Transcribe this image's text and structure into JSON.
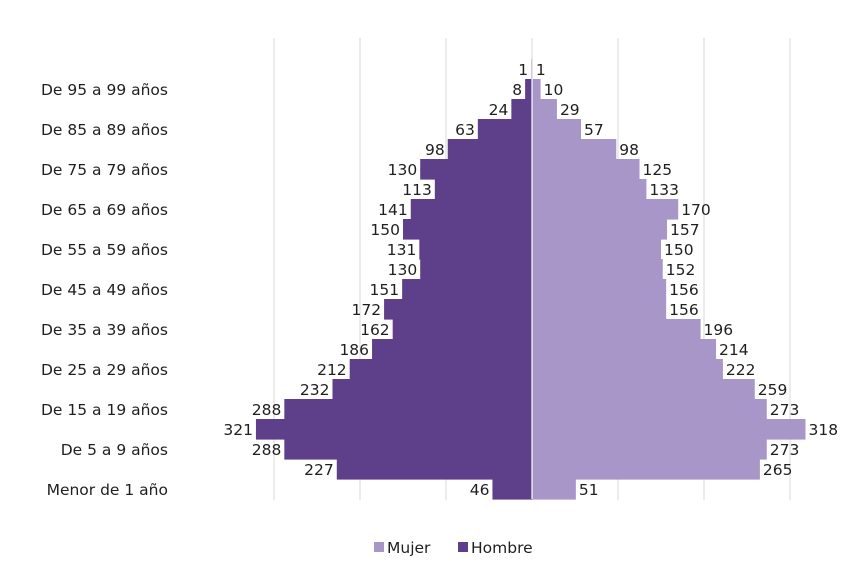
{
  "chart_data": {
    "type": "bar",
    "orientation": "horizontal",
    "layout": "population-pyramid",
    "categories": [
      "Menor de 1 año",
      "",
      "De 5 a 9 años",
      "",
      "De 15 a 19 años",
      "",
      "De 25 a 29 años",
      "",
      "De 35 a 39 años",
      "",
      "De 45 a 49 años",
      "",
      "De 55 a 59 años",
      "",
      "De 65 a 69 años",
      "",
      "De 75 a 79 años",
      "",
      "De 85 a 89 años",
      "",
      "De 95 a 99 años",
      ""
    ],
    "series": [
      {
        "name": "Hombre",
        "color": "#5e3f8a",
        "side": "left",
        "values": [
          46,
          227,
          288,
          321,
          288,
          232,
          212,
          186,
          162,
          172,
          151,
          130,
          131,
          150,
          141,
          113,
          130,
          98,
          63,
          24,
          8,
          1
        ]
      },
      {
        "name": "Mujer",
        "color": "#a996c8",
        "side": "right",
        "values": [
          51,
          265,
          273,
          318,
          273,
          259,
          222,
          214,
          196,
          156,
          156,
          152,
          150,
          157,
          170,
          133,
          125,
          98,
          57,
          29,
          10,
          1
        ]
      }
    ],
    "xlim": [
      -300,
      300
    ],
    "grid": true,
    "legend_position": "bottom"
  }
}
